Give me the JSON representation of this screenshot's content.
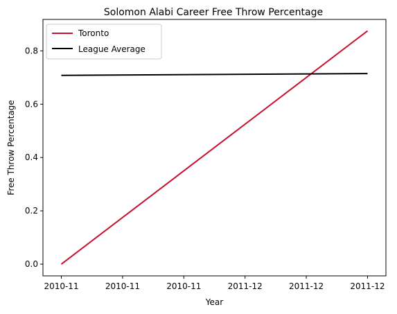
{
  "chart_data": {
    "type": "line",
    "title": "Solomon Alabi Career Free Throw Percentage",
    "xlabel": "Year",
    "ylabel": "Free Throw Percentage",
    "x_tick_labels": [
      "2010-11",
      "2010-11",
      "2010-11",
      "2011-12",
      "2011-12",
      "2011-12"
    ],
    "x_range": [
      -0.06,
      1.06
    ],
    "ylim": [
      -0.044,
      0.918
    ],
    "y_ticks": [
      0.0,
      0.2,
      0.4,
      0.6,
      0.8
    ],
    "y_tick_labels": [
      "0.0",
      "0.2",
      "0.4",
      "0.6",
      "0.8"
    ],
    "grid": false,
    "legend_position": "top-left",
    "series": [
      {
        "name": "Toronto",
        "color": "#c8102e",
        "x": [
          0,
          1
        ],
        "y": [
          0.0,
          0.875
        ]
      },
      {
        "name": "League Average",
        "color": "#000000",
        "x": [
          0,
          1
        ],
        "y": [
          0.708,
          0.715
        ]
      }
    ]
  }
}
